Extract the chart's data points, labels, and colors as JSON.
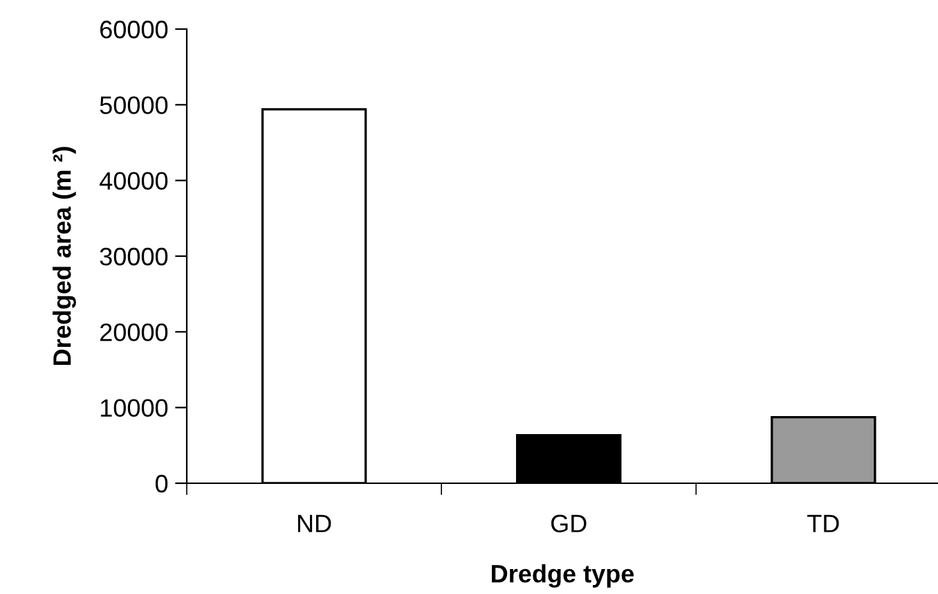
{
  "chart_data": {
    "type": "bar",
    "xlabel": "Dredge type",
    "ylabel": "Dredged area (m ²)",
    "categories": [
      "ND",
      "GD",
      "TD"
    ],
    "values": [
      49400,
      6350,
      8730
    ],
    "colors": [
      "#ffffff",
      "#000000",
      "#9a9a9a"
    ],
    "ylim": [
      0,
      60000
    ],
    "yticks": [
      0,
      10000,
      20000,
      30000,
      40000,
      50000,
      60000
    ],
    "grid": false,
    "legend": false
  }
}
